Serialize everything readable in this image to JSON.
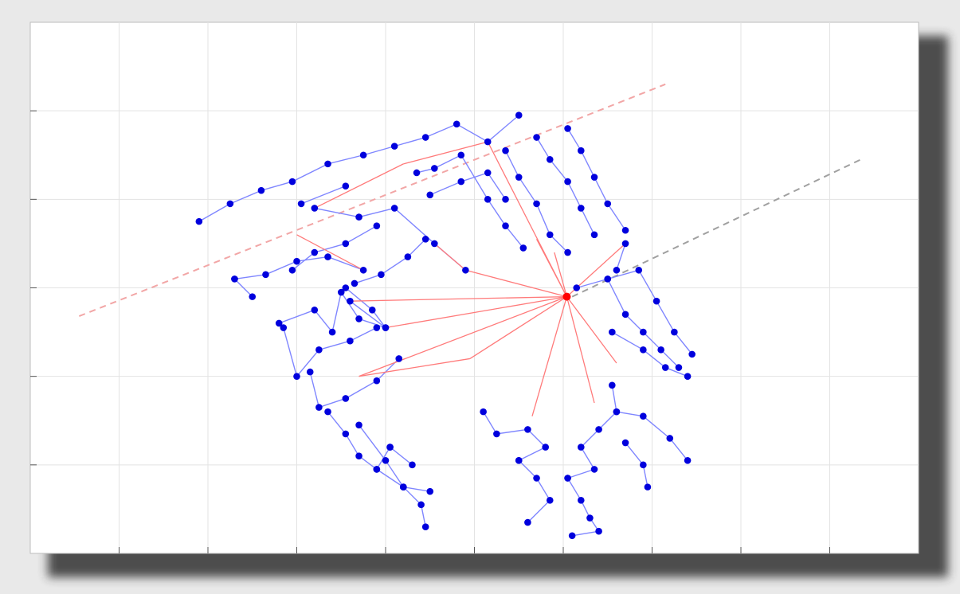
{
  "chart_data": {
    "type": "scatter",
    "title": "",
    "xlabel": "",
    "ylabel": "",
    "xlim": [
      0,
      10
    ],
    "ylim": [
      0,
      6
    ],
    "grid": true,
    "legend": "none",
    "colors": {
      "node": "#0000dd",
      "tree_edge": "#7f86ff",
      "path_edge": "#ff7a7a",
      "root": "#ff0000",
      "line_red": "#f2a6a6",
      "line_gray": "#a0a0a0",
      "grid": "#e3e3e3"
    },
    "root": [
      6.04,
      2.9
    ],
    "guide_lines": [
      {
        "kind": "red-dashed",
        "from": [
          0.55,
          2.68
        ],
        "to": [
          7.15,
          5.3
        ]
      },
      {
        "kind": "gray-dashed",
        "from": [
          6.1,
          2.9
        ],
        "to": [
          9.35,
          4.45
        ]
      }
    ],
    "path_edges": [
      [
        [
          6.04,
          2.9
        ],
        [
          5.15,
          4.65
        ]
      ],
      [
        [
          6.04,
          2.9
        ],
        [
          4.9,
          3.2
        ]
      ],
      [
        [
          6.04,
          2.9
        ],
        [
          4.0,
          2.55
        ]
      ],
      [
        [
          6.04,
          2.9
        ],
        [
          3.6,
          2.85
        ]
      ],
      [
        [
          6.04,
          2.9
        ],
        [
          3.7,
          2.0
        ]
      ],
      [
        [
          6.04,
          2.9
        ],
        [
          4.95,
          2.2
        ]
      ],
      [
        [
          6.04,
          2.9
        ],
        [
          5.65,
          1.55
        ]
      ],
      [
        [
          6.04,
          2.9
        ],
        [
          6.35,
          1.7
        ]
      ],
      [
        [
          6.04,
          2.9
        ],
        [
          6.6,
          2.15
        ]
      ],
      [
        [
          6.04,
          2.9
        ],
        [
          6.7,
          3.5
        ]
      ],
      [
        [
          6.04,
          2.9
        ],
        [
          5.7,
          3.55
        ]
      ],
      [
        [
          6.04,
          2.9
        ],
        [
          5.9,
          3.4
        ]
      ],
      [
        [
          3.7,
          2.0
        ],
        [
          4.95,
          2.2
        ]
      ],
      [
        [
          3.0,
          3.6
        ],
        [
          3.75,
          3.2
        ]
      ],
      [
        [
          4.9,
          3.2
        ],
        [
          4.55,
          3.5
        ]
      ],
      [
        [
          4.2,
          4.4
        ],
        [
          5.15,
          4.65
        ]
      ],
      [
        [
          3.2,
          3.9
        ],
        [
          4.2,
          4.4
        ]
      ]
    ],
    "series": [
      {
        "points": [
          [
            1.9,
            3.75
          ],
          [
            2.25,
            3.95
          ],
          [
            2.6,
            4.1
          ],
          [
            2.95,
            4.2
          ],
          [
            3.35,
            4.4
          ],
          [
            3.75,
            4.5
          ],
          [
            4.1,
            4.6
          ],
          [
            4.45,
            4.7
          ],
          [
            4.8,
            4.85
          ],
          [
            5.15,
            4.65
          ],
          [
            5.5,
            4.95
          ]
        ]
      },
      {
        "points": [
          [
            2.3,
            3.1
          ],
          [
            2.5,
            2.9
          ]
        ]
      },
      {
        "points": [
          [
            2.3,
            3.1
          ],
          [
            2.65,
            3.15
          ],
          [
            3.0,
            3.3
          ],
          [
            3.35,
            3.35
          ],
          [
            3.75,
            3.2
          ]
        ]
      },
      {
        "points": [
          [
            2.95,
            3.2
          ],
          [
            3.2,
            3.4
          ],
          [
            3.55,
            3.5
          ],
          [
            3.9,
            3.7
          ]
        ]
      },
      {
        "points": [
          [
            3.05,
            3.95
          ],
          [
            3.55,
            4.15
          ]
        ]
      },
      {
        "points": [
          [
            3.2,
            3.9
          ],
          [
            3.7,
            3.8
          ],
          [
            4.1,
            3.9
          ],
          [
            4.55,
            3.5
          ],
          [
            4.9,
            3.2
          ]
        ]
      },
      {
        "points": [
          [
            3.65,
            3.05
          ],
          [
            3.95,
            3.15
          ],
          [
            4.25,
            3.35
          ],
          [
            4.45,
            3.55
          ]
        ]
      },
      {
        "points": [
          [
            3.55,
            3.0
          ],
          [
            3.85,
            2.75
          ],
          [
            4.0,
            2.55
          ],
          [
            3.6,
            2.85
          ]
        ]
      },
      {
        "points": [
          [
            2.8,
            2.6
          ],
          [
            3.2,
            2.75
          ],
          [
            3.4,
            2.5
          ],
          [
            3.5,
            2.95
          ],
          [
            3.7,
            2.65
          ],
          [
            4.0,
            2.55
          ]
        ]
      },
      {
        "points": [
          [
            2.85,
            2.55
          ],
          [
            3.0,
            2.0
          ],
          [
            3.25,
            2.3
          ],
          [
            3.6,
            2.4
          ],
          [
            3.9,
            2.55
          ]
        ]
      },
      {
        "points": [
          [
            3.15,
            2.05
          ],
          [
            3.25,
            1.65
          ],
          [
            3.55,
            1.75
          ],
          [
            3.9,
            1.95
          ],
          [
            4.15,
            2.2
          ]
        ]
      },
      {
        "points": [
          [
            3.35,
            1.6
          ],
          [
            3.55,
            1.35
          ],
          [
            3.7,
            1.1
          ],
          [
            3.9,
            0.95
          ],
          [
            4.05,
            1.2
          ]
        ]
      },
      {
        "points": [
          [
            3.7,
            1.45
          ],
          [
            4.0,
            1.05
          ],
          [
            4.2,
            0.75
          ],
          [
            4.4,
            0.55
          ],
          [
            4.45,
            0.3
          ]
        ]
      },
      {
        "points": [
          [
            4.2,
            0.75
          ],
          [
            4.5,
            0.7
          ]
        ]
      },
      {
        "points": [
          [
            4.05,
            1.2
          ],
          [
            4.3,
            1.0
          ]
        ]
      },
      {
        "points": [
          [
            3.9,
            0.95
          ],
          [
            4.2,
            0.75
          ]
        ]
      },
      {
        "points": [
          [
            5.1,
            1.6
          ],
          [
            5.25,
            1.35
          ],
          [
            5.6,
            1.4
          ],
          [
            5.8,
            1.2
          ],
          [
            5.5,
            1.05
          ]
        ]
      },
      {
        "points": [
          [
            5.5,
            1.05
          ],
          [
            5.7,
            0.85
          ],
          [
            5.85,
            0.6
          ],
          [
            5.6,
            0.35
          ]
        ]
      },
      {
        "points": [
          [
            6.05,
            0.85
          ],
          [
            6.2,
            0.6
          ],
          [
            6.3,
            0.4
          ],
          [
            6.4,
            0.25
          ],
          [
            6.1,
            0.2
          ]
        ]
      },
      {
        "points": [
          [
            6.05,
            0.85
          ],
          [
            6.35,
            0.95
          ],
          [
            6.2,
            1.2
          ],
          [
            6.4,
            1.4
          ],
          [
            6.6,
            1.6
          ],
          [
            6.55,
            1.9
          ]
        ]
      },
      {
        "points": [
          [
            6.6,
            1.6
          ],
          [
            6.9,
            1.55
          ],
          [
            7.2,
            1.3
          ],
          [
            7.4,
            1.05
          ]
        ]
      },
      {
        "points": [
          [
            6.7,
            1.25
          ],
          [
            6.9,
            1.0
          ],
          [
            6.95,
            0.75
          ]
        ]
      },
      {
        "points": [
          [
            6.55,
            2.5
          ],
          [
            6.9,
            2.3
          ],
          [
            7.15,
            2.1
          ],
          [
            7.4,
            2.0
          ]
        ]
      },
      {
        "points": [
          [
            6.15,
            3.0
          ],
          [
            6.5,
            3.1
          ],
          [
            6.7,
            2.7
          ],
          [
            6.9,
            2.5
          ],
          [
            7.1,
            2.3
          ],
          [
            7.3,
            2.1
          ]
        ]
      },
      {
        "points": [
          [
            6.5,
            3.1
          ],
          [
            6.85,
            3.2
          ],
          [
            7.05,
            2.85
          ],
          [
            7.25,
            2.5
          ],
          [
            7.45,
            2.25
          ]
        ]
      },
      {
        "points": [
          [
            6.05,
            4.8
          ],
          [
            6.2,
            4.55
          ],
          [
            6.35,
            4.25
          ],
          [
            6.5,
            3.95
          ],
          [
            6.7,
            3.65
          ]
        ]
      },
      {
        "points": [
          [
            5.7,
            4.7
          ],
          [
            5.85,
            4.45
          ],
          [
            6.05,
            4.2
          ],
          [
            6.2,
            3.9
          ],
          [
            6.35,
            3.6
          ]
        ]
      },
      {
        "points": [
          [
            5.35,
            4.55
          ],
          [
            5.5,
            4.25
          ],
          [
            5.7,
            3.95
          ],
          [
            5.85,
            3.6
          ],
          [
            6.05,
            3.4
          ]
        ]
      },
      {
        "points": [
          [
            4.35,
            4.3
          ],
          [
            4.55,
            4.35
          ],
          [
            4.85,
            4.5
          ],
          [
            5.15,
            4.0
          ],
          [
            5.35,
            3.7
          ],
          [
            5.55,
            3.45
          ]
        ]
      },
      {
        "points": [
          [
            4.5,
            4.05
          ],
          [
            4.85,
            4.2
          ],
          [
            5.15,
            4.3
          ],
          [
            5.35,
            4.0
          ]
        ]
      },
      {
        "points": [
          [
            6.6,
            3.2
          ],
          [
            6.7,
            3.5
          ]
        ]
      }
    ]
  }
}
